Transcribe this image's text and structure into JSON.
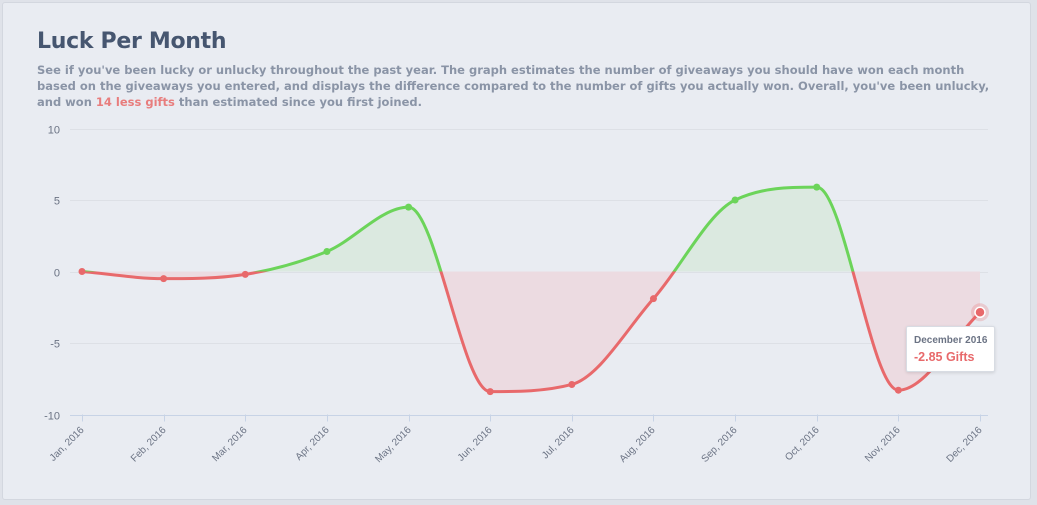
{
  "card": {
    "title": "Luck Per Month",
    "description_part1": "See if you've been lucky or unlucky throughout the past year. The graph estimates the number of giveaways you should have won each month based on the giveaways you entered, and displays the difference compared to the number of gifts you actually won. Overall, you've been unlucky, and won ",
    "description_highlight": "14 less gifts",
    "description_part2": " than estimated since you first joined."
  },
  "tooltip": {
    "date": "December 2016",
    "value": "-2.85 Gifts"
  },
  "colors": {
    "positive_line": "#6cd45a",
    "negative_line": "#e8696b",
    "positive_fill": "#dbe9e0",
    "negative_fill": "#ecdbe1",
    "highlight_text": "#e87d7d"
  },
  "chart_data": {
    "type": "area",
    "title": "Luck Per Month",
    "xlabel": "",
    "ylabel": "",
    "categories": [
      "Jan, 2016",
      "Feb, 2016",
      "Mar, 2016",
      "Apr, 2016",
      "May, 2016",
      "Jun, 2016",
      "Jul, 2016",
      "Aug, 2016",
      "Sep, 2016",
      "Oct, 2016",
      "Nov, 2016",
      "Dec, 2016"
    ],
    "values": [
      0,
      -0.5,
      -0.2,
      1.4,
      4.5,
      -8.4,
      -7.9,
      -1.9,
      5.0,
      5.9,
      -8.3,
      -2.85
    ],
    "ylim": [
      -10,
      10
    ],
    "yticks": [
      10,
      5,
      0,
      -5,
      -10
    ],
    "grid": true,
    "legend": "none"
  }
}
